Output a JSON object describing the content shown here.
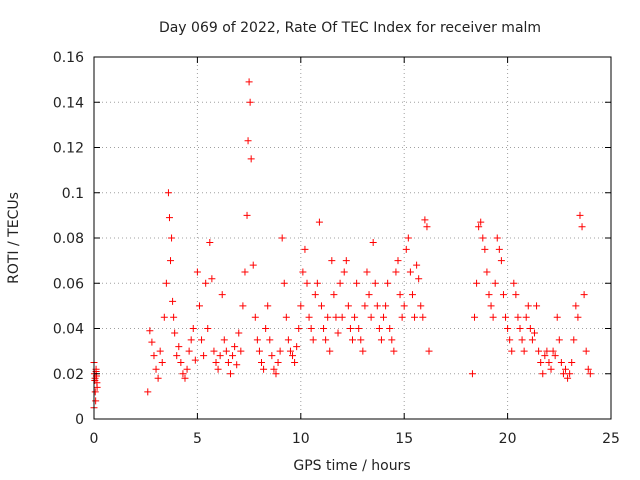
{
  "chart_data": {
    "type": "scatter",
    "title": "Day 069 of 2022, Rate Of TEC Index for receiver malm",
    "xlabel": "GPS time / hours",
    "ylabel": "ROTI / TECUs",
    "xlim": [
      0,
      25
    ],
    "ylim": [
      0,
      0.16
    ],
    "xticks": [
      "0",
      "5",
      "10",
      "15",
      "20",
      "25"
    ],
    "yticks": [
      "0",
      "0.02",
      "0.04",
      "0.06",
      "0.08",
      "0.1",
      "0.12",
      "0.14",
      "0.16"
    ],
    "grid": true,
    "marker": "+",
    "color": "#ff0000",
    "series": [
      {
        "values_description_note": "",
        "x": [
          0.0,
          0.02,
          0.04,
          0.06,
          0.08,
          0.1,
          0.12,
          0.14,
          0.0,
          0.05,
          0.1,
          0.15,
          2.6,
          2.7,
          2.8,
          2.9,
          3.0,
          3.1,
          3.2,
          3.3,
          3.4,
          3.5,
          3.6,
          3.65,
          3.7,
          3.75,
          3.8,
          3.85,
          3.9,
          4.0,
          4.1,
          4.2,
          4.3,
          4.4,
          4.5,
          4.6,
          4.7,
          4.8,
          4.9,
          5.0,
          5.1,
          5.2,
          5.3,
          5.4,
          5.5,
          5.6,
          5.7,
          5.8,
          5.9,
          6.0,
          6.1,
          6.2,
          6.3,
          6.4,
          6.5,
          6.6,
          6.7,
          6.8,
          6.9,
          7.0,
          7.1,
          7.2,
          7.3,
          7.4,
          7.45,
          7.5,
          7.55,
          7.6,
          7.7,
          7.8,
          7.9,
          8.0,
          8.1,
          8.2,
          8.3,
          8.4,
          8.5,
          8.6,
          8.7,
          8.8,
          8.9,
          9.0,
          9.1,
          9.2,
          9.3,
          9.4,
          9.5,
          9.6,
          9.7,
          9.8,
          9.9,
          10.0,
          10.1,
          10.2,
          10.3,
          10.4,
          10.5,
          10.6,
          10.7,
          10.8,
          10.9,
          11.0,
          11.1,
          11.2,
          11.3,
          11.4,
          11.5,
          11.6,
          11.7,
          11.8,
          11.9,
          12.0,
          12.1,
          12.2,
          12.3,
          12.4,
          12.5,
          12.6,
          12.7,
          12.8,
          12.9,
          13.0,
          13.1,
          13.2,
          13.3,
          13.4,
          13.5,
          13.6,
          13.7,
          13.8,
          13.9,
          14.0,
          14.1,
          14.2,
          14.3,
          14.4,
          14.5,
          14.6,
          14.7,
          14.8,
          14.9,
          15.0,
          15.1,
          15.2,
          15.3,
          15.4,
          15.5,
          15.6,
          15.7,
          15.8,
          15.9,
          16.0,
          16.1,
          16.2,
          18.3,
          18.4,
          18.5,
          18.6,
          18.7,
          18.8,
          18.9,
          19.0,
          19.1,
          19.2,
          19.3,
          19.4,
          19.5,
          19.6,
          19.7,
          19.8,
          19.9,
          20.0,
          20.1,
          20.2,
          20.3,
          20.4,
          20.5,
          20.6,
          20.7,
          20.8,
          20.9,
          21.0,
          21.1,
          21.2,
          21.3,
          21.4,
          21.5,
          21.6,
          21.7,
          21.8,
          21.9,
          22.0,
          22.1,
          22.2,
          22.3,
          22.4,
          22.5,
          22.6,
          22.7,
          22.8,
          22.9,
          23.0,
          23.1,
          23.2,
          23.3,
          23.4,
          23.5,
          23.6,
          23.7,
          23.8,
          23.9,
          24.0
        ],
        "y": [
          0.025,
          0.02,
          0.017,
          0.012,
          0.008,
          0.021,
          0.019,
          0.016,
          0.005,
          0.018,
          0.022,
          0.014,
          0.012,
          0.039,
          0.034,
          0.028,
          0.022,
          0.018,
          0.03,
          0.025,
          0.045,
          0.06,
          0.1,
          0.089,
          0.07,
          0.08,
          0.052,
          0.045,
          0.038,
          0.028,
          0.032,
          0.025,
          0.02,
          0.018,
          0.022,
          0.03,
          0.035,
          0.04,
          0.026,
          0.065,
          0.05,
          0.035,
          0.028,
          0.06,
          0.04,
          0.078,
          0.062,
          0.03,
          0.025,
          0.022,
          0.028,
          0.055,
          0.035,
          0.03,
          0.025,
          0.02,
          0.028,
          0.032,
          0.024,
          0.038,
          0.03,
          0.05,
          0.065,
          0.09,
          0.123,
          0.149,
          0.14,
          0.115,
          0.068,
          0.045,
          0.035,
          0.03,
          0.025,
          0.022,
          0.04,
          0.05,
          0.035,
          0.028,
          0.022,
          0.02,
          0.025,
          0.03,
          0.08,
          0.06,
          0.045,
          0.035,
          0.03,
          0.028,
          0.025,
          0.032,
          0.04,
          0.05,
          0.065,
          0.075,
          0.06,
          0.045,
          0.04,
          0.035,
          0.055,
          0.06,
          0.087,
          0.05,
          0.04,
          0.035,
          0.045,
          0.03,
          0.07,
          0.055,
          0.045,
          0.038,
          0.06,
          0.045,
          0.065,
          0.07,
          0.05,
          0.04,
          0.035,
          0.045,
          0.06,
          0.04,
          0.035,
          0.03,
          0.05,
          0.065,
          0.055,
          0.045,
          0.078,
          0.06,
          0.05,
          0.04,
          0.035,
          0.045,
          0.05,
          0.06,
          0.04,
          0.035,
          0.03,
          0.065,
          0.07,
          0.055,
          0.045,
          0.05,
          0.075,
          0.08,
          0.065,
          0.055,
          0.045,
          0.068,
          0.062,
          0.05,
          0.045,
          0.088,
          0.085,
          0.03,
          0.02,
          0.045,
          0.06,
          0.085,
          0.087,
          0.08,
          0.075,
          0.065,
          0.055,
          0.05,
          0.045,
          0.06,
          0.08,
          0.075,
          0.07,
          0.055,
          0.045,
          0.04,
          0.035,
          0.03,
          0.06,
          0.055,
          0.045,
          0.04,
          0.035,
          0.03,
          0.045,
          0.05,
          0.04,
          0.035,
          0.038,
          0.05,
          0.03,
          0.025,
          0.02,
          0.028,
          0.03,
          0.025,
          0.022,
          0.03,
          0.028,
          0.045,
          0.035,
          0.025,
          0.02,
          0.022,
          0.018,
          0.02,
          0.025,
          0.035,
          0.05,
          0.045,
          0.09,
          0.085,
          0.055,
          0.03,
          0.022,
          0.02
        ]
      }
    ]
  }
}
